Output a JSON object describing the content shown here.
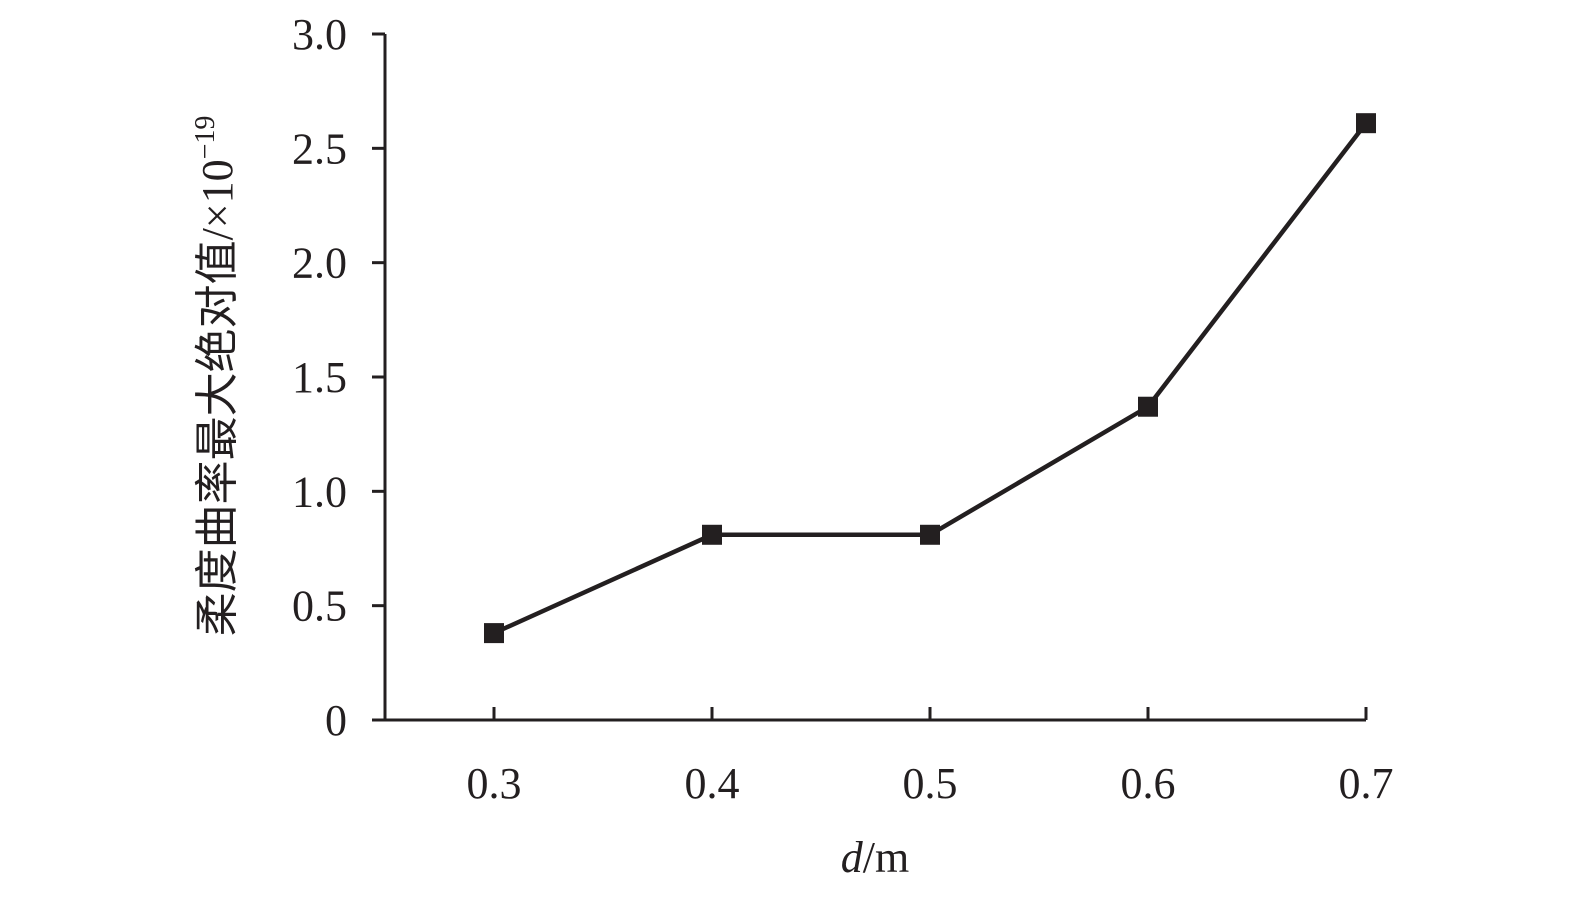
{
  "chart_data": {
    "type": "line",
    "title": "",
    "xlabel_italic": "d",
    "xlabel_unit": "/m",
    "ylabel": "柔度曲率最大绝对值/×10",
    "ylabel_exponent": "−19",
    "x": [
      0.3,
      0.4,
      0.5,
      0.6,
      0.7
    ],
    "series": [
      {
        "values": [
          0.38,
          0.81,
          0.81,
          1.37,
          2.61
        ],
        "marker": "square",
        "color": "#231f20"
      }
    ],
    "xlim": [
      0.25,
      0.7
    ],
    "ylim": [
      0,
      3.0
    ],
    "xticks": [
      "0.3",
      "0.4",
      "0.5",
      "0.6",
      "0.7"
    ],
    "yticks": [
      "0",
      "0.5",
      "1.0",
      "1.5",
      "2.0",
      "2.5",
      "3.0"
    ],
    "grid": false,
    "legend": "none"
  }
}
